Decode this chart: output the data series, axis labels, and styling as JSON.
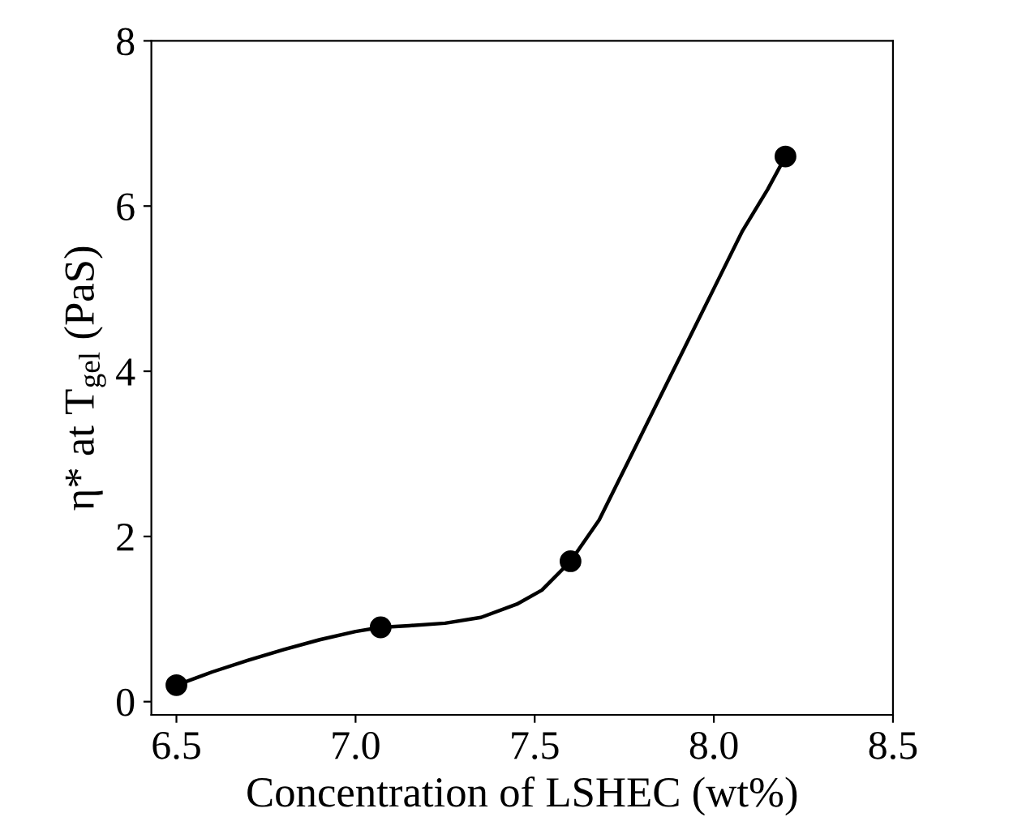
{
  "chart_data": {
    "type": "scatter",
    "xlabel": "Concentration of LSHEC (wt%)",
    "ylabel": "η* at T$_{gel}$ (PaS)",
    "xlim": [
      6.43,
      8.5
    ],
    "xticks": [
      {
        "value": 6.5,
        "label": "6.5"
      },
      {
        "value": 7,
        "label": "7.0"
      },
      {
        "value": 7.5,
        "label": "7.5"
      },
      {
        "value": 8,
        "label": "8.0"
      },
      {
        "value": 8.5,
        "label": "8.5"
      }
    ],
    "ylim": [
      -0.16,
      8
    ],
    "yticks": [
      0,
      2,
      4,
      6,
      8
    ],
    "grid": false,
    "series": [
      {
        "type": "line",
        "color": "#000000",
        "marker": "none",
        "line_style": "solid",
        "x": [
          6.5,
          6.6,
          6.7,
          6.8,
          6.9,
          7.0,
          7.07,
          7.15,
          7.25,
          7.35,
          7.45,
          7.52,
          7.6,
          7.68,
          7.76,
          7.84,
          7.92,
          8.0,
          8.08,
          8.15,
          8.2
        ],
        "values": [
          0.2,
          0.36,
          0.5,
          0.63,
          0.75,
          0.85,
          0.9,
          0.92,
          0.95,
          1.02,
          1.18,
          1.35,
          1.7,
          2.2,
          2.9,
          3.6,
          4.3,
          5.0,
          5.7,
          6.2,
          6.6
        ]
      },
      {
        "color": "#000000",
        "marker": "circle",
        "x": [
          6.5,
          7.07,
          7.6,
          8.2
        ],
        "values": [
          0.2,
          0.9,
          1.7,
          6.6
        ]
      }
    ]
  }
}
